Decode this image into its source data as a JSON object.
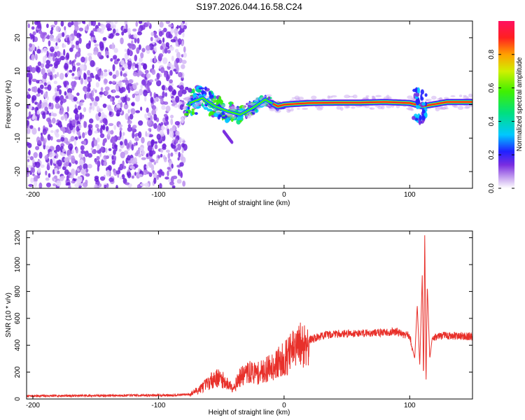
{
  "title": "S197.2026.044.16.58.C24",
  "colors": {
    "snr_line": "#e8302a",
    "frame": "#000000"
  },
  "chart_data": [
    {
      "type": "heatmap",
      "name": "spectrogram",
      "xlabel": "Height of straight line (km)",
      "ylabel": "Frequency (Hz)",
      "xlim": [
        -205,
        150
      ],
      "ylim": [
        -25,
        25
      ],
      "xticks": [
        -200,
        -100,
        0,
        100
      ],
      "yticks": [
        -20,
        -10,
        0,
        10,
        20
      ],
      "xtick_labels": [
        "-200",
        "-100",
        "0",
        "100"
      ],
      "ytick_labels": [
        "-20",
        "-10",
        "0",
        "10",
        "20"
      ],
      "ridge": [
        {
          "x": -75,
          "y": 0.5
        },
        {
          "x": -65,
          "y": 2.0
        },
        {
          "x": -55,
          "y": -0.5
        },
        {
          "x": -45,
          "y": -2.0
        },
        {
          "x": -35,
          "y": -3.0
        },
        {
          "x": -25,
          "y": -1.0
        },
        {
          "x": -15,
          "y": 1.5
        },
        {
          "x": -10,
          "y": 0.5
        },
        {
          "x": -5,
          "y": -0.5
        },
        {
          "x": 0,
          "y": 0.0
        },
        {
          "x": 20,
          "y": 0.5
        },
        {
          "x": 40,
          "y": 0.6
        },
        {
          "x": 60,
          "y": 0.6
        },
        {
          "x": 80,
          "y": 0.8
        },
        {
          "x": 100,
          "y": 0.5
        },
        {
          "x": 110,
          "y": -0.5
        },
        {
          "x": 130,
          "y": 0.8
        },
        {
          "x": 150,
          "y": 0.8
        }
      ],
      "noise_region_end_km": -78,
      "colorbar": {
        "label": "Normalized spectral amplitude",
        "range": [
          0,
          1
        ],
        "ticks": [
          0.0,
          0.2,
          0.4,
          0.6,
          0.8
        ],
        "tick_labels": [
          "0.0",
          "0.2",
          "0.4",
          "0.6",
          "0.8"
        ]
      }
    },
    {
      "type": "line",
      "name": "snr",
      "xlabel": "Height of straight line (km)",
      "ylabel": "SNR (10 * v/v)",
      "xlim": [
        -205,
        150
      ],
      "ylim": [
        0,
        1250
      ],
      "xticks": [
        -200,
        -100,
        0,
        100
      ],
      "yticks": [
        0,
        200,
        400,
        600,
        800,
        1000,
        1200
      ],
      "xtick_labels": [
        "-200",
        "-100",
        "0",
        "100"
      ],
      "ytick_labels": [
        "0",
        "200",
        "400",
        "600",
        "800",
        "1000",
        "1200"
      ],
      "series": [
        {
          "name": "SNR",
          "points": [
            {
              "x": -205,
              "y": 22
            },
            {
              "x": -180,
              "y": 24
            },
            {
              "x": -150,
              "y": 25
            },
            {
              "x": -120,
              "y": 27
            },
            {
              "x": -90,
              "y": 28
            },
            {
              "x": -75,
              "y": 35
            },
            {
              "x": -68,
              "y": 70
            },
            {
              "x": -60,
              "y": 120
            },
            {
              "x": -55,
              "y": 160
            },
            {
              "x": -50,
              "y": 150
            },
            {
              "x": -45,
              "y": 110
            },
            {
              "x": -40,
              "y": 90
            },
            {
              "x": -35,
              "y": 160
            },
            {
              "x": -30,
              "y": 190
            },
            {
              "x": -25,
              "y": 200
            },
            {
              "x": -20,
              "y": 190
            },
            {
              "x": -15,
              "y": 215
            },
            {
              "x": -10,
              "y": 240
            },
            {
              "x": -5,
              "y": 265
            },
            {
              "x": 0,
              "y": 300
            },
            {
              "x": 5,
              "y": 340
            },
            {
              "x": 10,
              "y": 380
            },
            {
              "x": 15,
              "y": 410
            },
            {
              "x": 20,
              "y": 440
            },
            {
              "x": 30,
              "y": 470
            },
            {
              "x": 40,
              "y": 485
            },
            {
              "x": 60,
              "y": 490
            },
            {
              "x": 80,
              "y": 495
            },
            {
              "x": 90,
              "y": 500
            },
            {
              "x": 95,
              "y": 480
            },
            {
              "x": 100,
              "y": 470
            },
            {
              "x": 104,
              "y": 300
            },
            {
              "x": 106,
              "y": 700
            },
            {
              "x": 108,
              "y": 250
            },
            {
              "x": 110,
              "y": 920
            },
            {
              "x": 111,
              "y": 130
            },
            {
              "x": 112,
              "y": 1240
            },
            {
              "x": 113,
              "y": 100
            },
            {
              "x": 114,
              "y": 850
            },
            {
              "x": 116,
              "y": 300
            },
            {
              "x": 118,
              "y": 460
            },
            {
              "x": 125,
              "y": 470
            },
            {
              "x": 135,
              "y": 470
            },
            {
              "x": 150,
              "y": 465
            }
          ]
        }
      ]
    }
  ]
}
